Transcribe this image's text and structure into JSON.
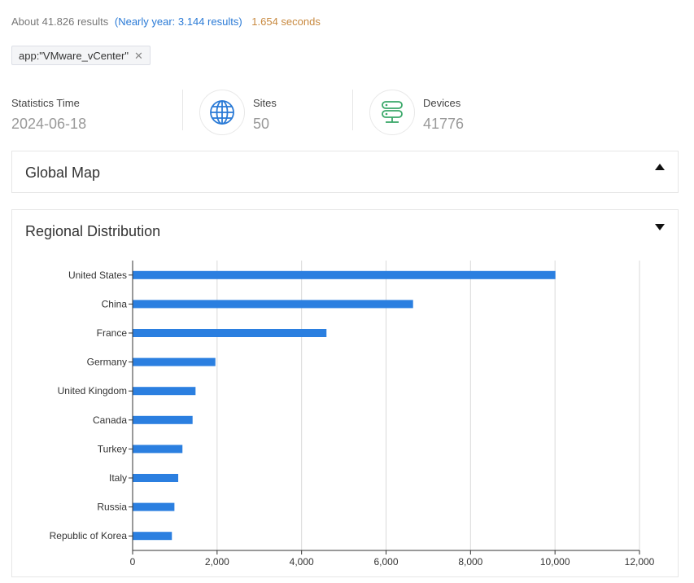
{
  "results": {
    "total_text": "About 41.826 results",
    "year_text": "(Nearly year: 3.144 results)",
    "time_text": "1.654 seconds"
  },
  "query_tag": {
    "label": "app:\"VMware_vCenter\"",
    "close_glyph": "✕"
  },
  "stats": {
    "statistics_time": {
      "label": "Statistics Time",
      "value": "2024-06-18"
    },
    "sites": {
      "label": "Sites",
      "value": "50",
      "icon": "globe-icon"
    },
    "devices": {
      "label": "Devices",
      "value": "41776",
      "icon": "server-icon"
    }
  },
  "colors": {
    "accent": "#2a7ad6",
    "bar": "#2b7fe0",
    "devices_icon": "#3aa869",
    "sites_icon": "#2a7ad6"
  },
  "panels": {
    "global_map": {
      "title": "Global Map",
      "state": "collapsed"
    },
    "regional": {
      "title": "Regional Distribution",
      "state": "expanded"
    }
  },
  "chart_data": {
    "type": "bar",
    "orientation": "horizontal",
    "categories": [
      "United States",
      "China",
      "France",
      "Germany",
      "United Kingdom",
      "Canada",
      "Turkey",
      "Italy",
      "Russia",
      "Republic of Korea"
    ],
    "values": [
      10000,
      6630,
      4580,
      1950,
      1480,
      1410,
      1170,
      1070,
      980,
      920
    ],
    "xlim": [
      0,
      12000
    ],
    "xticks": [
      0,
      2000,
      4000,
      6000,
      8000,
      10000,
      12000
    ],
    "xtick_labels": [
      "0",
      "2,000",
      "4,000",
      "6,000",
      "8,000",
      "10,000",
      "12,000"
    ],
    "grid": "vertical"
  }
}
